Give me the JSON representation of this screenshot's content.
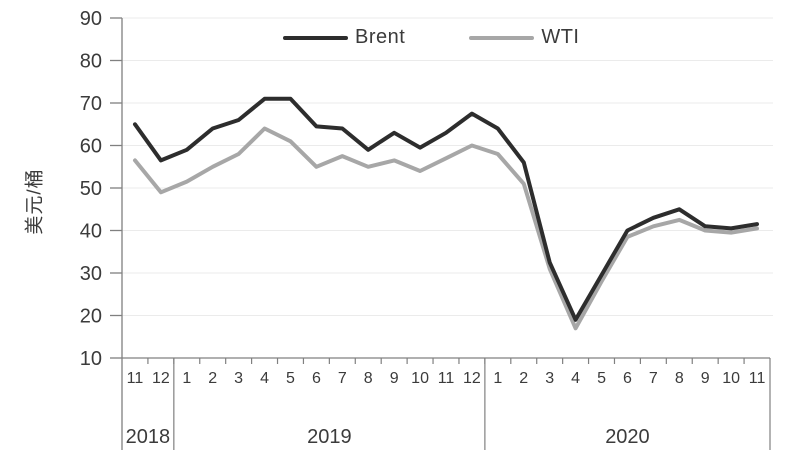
{
  "chart_data": {
    "type": "line",
    "title": "",
    "ylabel": "美元/桶",
    "xlabel": "",
    "ylim": [
      10,
      90
    ],
    "yticks": [
      10,
      20,
      30,
      40,
      50,
      60,
      70,
      80,
      90
    ],
    "grid": true,
    "legend_position": "top",
    "x_months": [
      "11",
      "12",
      "1",
      "2",
      "3",
      "4",
      "5",
      "6",
      "7",
      "8",
      "9",
      "10",
      "11",
      "12",
      "1",
      "2",
      "3",
      "4",
      "5",
      "6",
      "7",
      "8",
      "9",
      "10",
      "11"
    ],
    "year_groups": [
      {
        "label": "2018",
        "months": 2
      },
      {
        "label": "2019",
        "months": 12
      },
      {
        "label": "2020",
        "months": 11
      }
    ],
    "series": [
      {
        "name": "Brent",
        "color": "#2d2d2d",
        "values": [
          65,
          56.5,
          59,
          64,
          66,
          71,
          71,
          64.5,
          64,
          59,
          63,
          59.5,
          63,
          67.5,
          64,
          56,
          32.5,
          19,
          29.5,
          40,
          43,
          45,
          41,
          40.5,
          41.5
        ]
      },
      {
        "name": "WTI",
        "color": "#a7a7a7",
        "values": [
          56.5,
          49,
          51.5,
          55,
          58,
          64,
          61,
          55,
          57.5,
          55,
          56.5,
          54,
          57,
          60,
          58,
          51,
          31,
          17,
          28,
          38.5,
          41,
          42.5,
          40,
          39.5,
          40.5
        ]
      }
    ],
    "axis_color": "#808080",
    "grid_color": "#ebebeb"
  }
}
